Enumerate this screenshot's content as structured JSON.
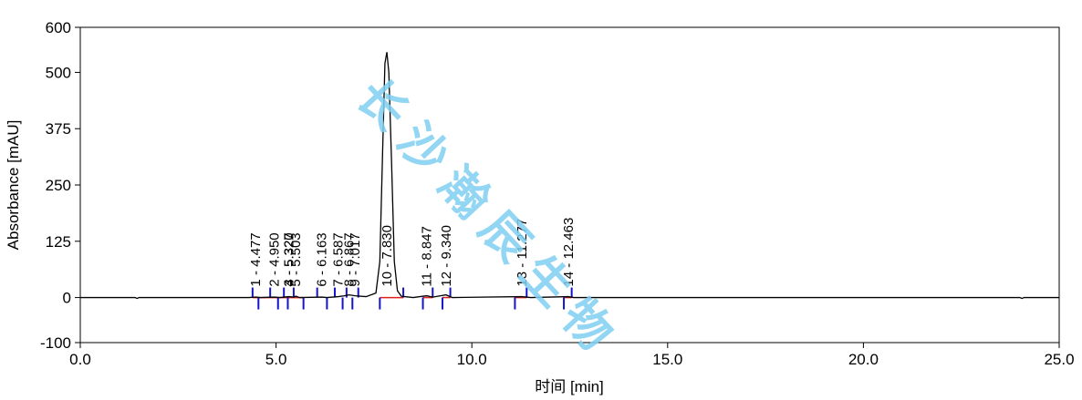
{
  "chart_data": {
    "type": "line",
    "xlabel": "时间 [min]",
    "ylabel": "Absorbance [mAU]",
    "xlim": [
      0.0,
      25.0
    ],
    "ylim": [
      -100,
      600
    ],
    "x_ticks": [
      "0.0",
      "5.0",
      "10.0",
      "15.0",
      "20.0",
      "25.0"
    ],
    "y_ticks": [
      "600",
      "500",
      "375",
      "250",
      "125",
      "0",
      "-100"
    ],
    "series": [
      {
        "x": [
          0.0,
          1.4,
          1.45,
          1.5,
          4.3,
          4.477,
          4.6,
          4.95,
          5.1,
          5.2,
          5.327,
          5.45,
          5.503,
          5.6,
          6.163,
          6.3,
          6.587,
          6.75,
          6.867,
          7.017,
          7.3,
          7.55,
          7.65,
          7.72,
          7.78,
          7.83,
          7.88,
          7.95,
          8.02,
          8.1,
          8.2,
          8.5,
          8.847,
          9.0,
          9.34,
          9.5,
          11.277,
          11.5,
          12.463,
          12.6,
          24.0,
          24.05,
          24.1,
          25.0
        ],
        "y": [
          0,
          0,
          -2,
          0,
          0,
          1,
          0,
          1,
          0,
          1,
          2,
          1,
          3,
          0,
          1,
          0,
          2,
          4,
          6,
          4,
          2,
          10,
          80,
          320,
          520,
          545,
          500,
          300,
          80,
          15,
          3,
          0,
          4,
          1,
          6,
          0,
          2,
          0,
          2,
          0,
          0,
          -2,
          0,
          0
        ],
        "color": "#000000"
      }
    ],
    "peaks": [
      {
        "label": "1 - 4.477",
        "x": 4.477
      },
      {
        "label": "2 - 4.950",
        "x": 4.95
      },
      {
        "label": "3 - 5.320",
        "x": 5.32
      },
      {
        "label": "4 - 5.327",
        "x": 5.327
      },
      {
        "label": "5 - 5.503",
        "x": 5.503
      },
      {
        "label": "6 - 6.163",
        "x": 6.163
      },
      {
        "label": "7 - 6.587",
        "x": 6.587
      },
      {
        "label": "8 - 6.867",
        "x": 6.867
      },
      {
        "label": "9 - 7.017",
        "x": 7.017
      },
      {
        "label": "10 - 7.830",
        "x": 7.83
      },
      {
        "label": "11 - 8.847",
        "x": 8.847
      },
      {
        "label": "12 - 9.340",
        "x": 9.34
      },
      {
        "label": "13 - 11.277",
        "x": 11.277
      },
      {
        "label": "14 - 12.463",
        "x": 12.463
      }
    ],
    "integration_marks_x": [
      4.4,
      4.55,
      4.85,
      5.05,
      5.2,
      5.3,
      5.45,
      5.7,
      6.05,
      6.3,
      6.5,
      6.7,
      6.8,
      6.95,
      7.1,
      7.65,
      8.25,
      8.75,
      9.0,
      9.25,
      9.45,
      11.1,
      11.4,
      12.35,
      12.55
    ],
    "baseline_segments": [
      [
        4.4,
        5.7
      ],
      [
        7.65,
        8.25
      ],
      [
        8.75,
        9.0
      ],
      [
        9.25,
        9.45
      ],
      [
        11.1,
        11.4
      ],
      [
        12.35,
        12.55
      ]
    ]
  },
  "watermark": "长沙瀚辰生物"
}
